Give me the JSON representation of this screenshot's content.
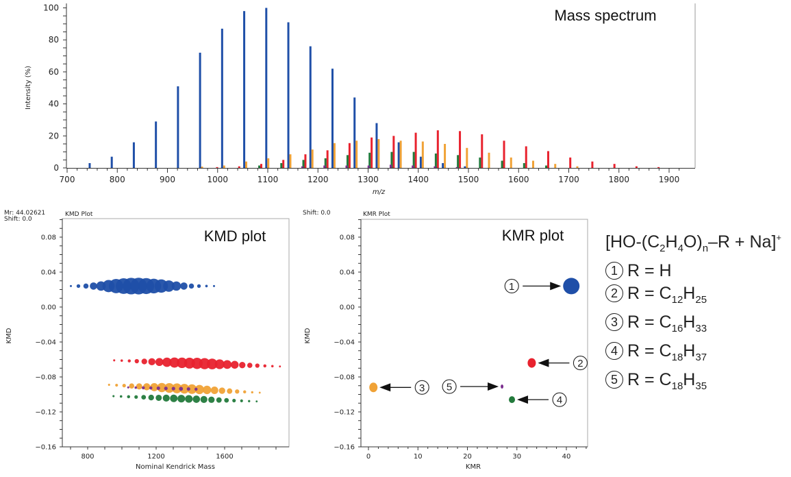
{
  "chart_data": [
    {
      "type": "bar",
      "title": "Mass spectrum",
      "xlabel": "m/z",
      "ylabel": "Intensity (%)",
      "xlim": [
        700,
        1920
      ],
      "ylim": [
        0,
        100
      ],
      "xticks": [
        700,
        800,
        900,
        1000,
        1100,
        1200,
        1300,
        1400,
        1500,
        1600,
        1700,
        1800,
        1900
      ],
      "yticks": [
        0,
        20,
        40,
        60,
        80,
        100
      ],
      "grid": false,
      "series": [
        {
          "name": "R = H",
          "color": "#1f4fa8",
          "x": [
            745,
            789,
            833,
            877,
            921,
            965,
            1009,
            1053,
            1097,
            1141,
            1185,
            1229,
            1273,
            1317,
            1361,
            1405,
            1449,
            1493
          ],
          "values": [
            3,
            7,
            16,
            29,
            51,
            72,
            87,
            98,
            100,
            91,
            76,
            62,
            44,
            28,
            16,
            7,
            3,
            1
          ]
        },
        {
          "name": "R = C12H25",
          "color": "#e8222e",
          "x": [
            999,
            1043,
            1087,
            1131,
            1175,
            1219,
            1263,
            1307,
            1351,
            1395,
            1439,
            1483,
            1527,
            1571,
            1615,
            1659,
            1703,
            1747,
            1791,
            1835,
            1879
          ],
          "values": [
            0.5,
            1,
            2.5,
            5,
            8.5,
            11,
            15.5,
            19,
            20,
            22,
            23.5,
            23,
            21,
            17,
            13.5,
            10.5,
            6.5,
            4,
            2.5,
            1,
            0.5
          ]
        },
        {
          "name": "R = C16H33",
          "color": "#f0a236",
          "x": [
            969,
            1013,
            1057,
            1101,
            1145,
            1189,
            1233,
            1277,
            1321,
            1365,
            1409,
            1453,
            1497,
            1541,
            1585,
            1629,
            1673,
            1717
          ],
          "values": [
            0.8,
            1.5,
            4,
            6,
            8.5,
            11.5,
            15.5,
            17,
            18,
            17,
            16.5,
            15,
            12.5,
            9.5,
            6.5,
            4.5,
            2.5,
            1
          ]
        },
        {
          "name": "R = C18H37",
          "color": "#237a3c",
          "x": [
            1083,
            1127,
            1171,
            1215,
            1259,
            1303,
            1347,
            1391,
            1435,
            1479,
            1523,
            1567,
            1611,
            1655
          ],
          "values": [
            1.5,
            3,
            5,
            6,
            8,
            9.5,
            10,
            10,
            9,
            8,
            6.5,
            4.5,
            3,
            1.5
          ]
        },
        {
          "name": "R = C18H35",
          "color": "#7b2f8f",
          "x": [
            1169,
            1213,
            1257,
            1301,
            1345,
            1389,
            1433,
            1477
          ],
          "values": [
            1,
            1.5,
            1.5,
            1.5,
            2,
            1.5,
            1,
            0.5
          ]
        }
      ]
    },
    {
      "type": "scatter",
      "title": "KMD plot",
      "panel_label": "KMD Plot",
      "header_lines": [
        "Mr: 44.02621",
        "Shift: 0.0"
      ],
      "xlabel": "Nominal Kendrick Mass",
      "ylabel": "KMD",
      "xlim": [
        652,
        1976
      ],
      "ylim": [
        -0.16,
        0.102
      ],
      "xticks": [
        800,
        1200,
        1600
      ],
      "yticks": [
        0.08,
        0.04,
        0.0,
        -0.04,
        -0.08,
        -0.12,
        -0.16
      ],
      "ytick_labels": [
        "0.08",
        "0.04",
        "0.00",
        "−0.04",
        "−0.08",
        "−0.12",
        "−0.16"
      ],
      "series": [
        {
          "name": "R = H",
          "color": "#1f4fa8",
          "kmd_start": 0.024,
          "kmd_end": 0.024,
          "x": [
            702,
            746,
            790,
            834,
            878,
            922,
            966,
            1010,
            1054,
            1098,
            1142,
            1186,
            1230,
            1274,
            1318,
            1362,
            1406,
            1450,
            1494,
            1538
          ],
          "intensity": [
            0.5,
            3,
            7,
            16,
            29,
            51,
            72,
            87,
            98,
            100,
            91,
            76,
            62,
            44,
            28,
            16,
            7,
            3,
            1,
            0.5
          ]
        },
        {
          "name": "R = C12H25",
          "color": "#e8222e",
          "kmd_start": -0.061,
          "kmd_end": -0.068,
          "x": [
            955,
            999,
            1043,
            1087,
            1131,
            1175,
            1219,
            1263,
            1307,
            1351,
            1395,
            1439,
            1483,
            1527,
            1571,
            1615,
            1659,
            1703,
            1747,
            1791,
            1835,
            1879,
            1923
          ],
          "intensity": [
            0.3,
            0.5,
            1,
            2.5,
            5,
            8.5,
            11,
            15.5,
            19,
            20,
            22,
            23.5,
            23,
            21,
            17,
            13.5,
            10.5,
            6.5,
            4,
            2.5,
            1,
            0.5,
            0.2
          ]
        },
        {
          "name": "R = C16H33",
          "color": "#f0a236",
          "kmd_start": -0.089,
          "kmd_end": -0.098,
          "x": [
            925,
            969,
            1013,
            1057,
            1101,
            1145,
            1189,
            1233,
            1277,
            1321,
            1365,
            1409,
            1453,
            1497,
            1541,
            1585,
            1629,
            1673,
            1717,
            1761,
            1805
          ],
          "intensity": [
            0.3,
            0.8,
            1.5,
            4,
            6,
            8.5,
            11.5,
            15.5,
            17,
            18,
            17,
            16.5,
            15,
            12.5,
            9.5,
            6.5,
            4.5,
            2.5,
            1,
            0.4,
            0.2
          ]
        },
        {
          "name": "R = C18H37",
          "color": "#237a3c",
          "kmd_start": -0.102,
          "kmd_end": -0.108,
          "x": [
            951,
            995,
            1039,
            1083,
            1127,
            1171,
            1215,
            1259,
            1303,
            1347,
            1391,
            1435,
            1479,
            1523,
            1567,
            1611,
            1655,
            1699,
            1743,
            1787
          ],
          "intensity": [
            0.3,
            0.5,
            1,
            1.5,
            3,
            5,
            6,
            8,
            9.5,
            10,
            10,
            9,
            8,
            6.5,
            4.5,
            3,
            1.5,
            0.8,
            0.4,
            0.2
          ]
        },
        {
          "name": "R = C18H35",
          "color": "#7b2f8f",
          "kmd_start": -0.092,
          "kmd_end": -0.094,
          "x": [
            1037,
            1081,
            1125,
            1169,
            1213,
            1257,
            1301,
            1345,
            1389,
            1433
          ],
          "intensity": [
            0.3,
            0.5,
            1,
            1,
            1.5,
            1.5,
            1.5,
            2,
            1.5,
            1
          ]
        }
      ]
    },
    {
      "type": "scatter",
      "title": "KMR plot",
      "panel_label": "KMR Plot",
      "header_lines": [
        "Shift: 0.0"
      ],
      "xlabel": "KMR",
      "ylabel": "KMD",
      "xlim": [
        -1.5,
        44.3
      ],
      "ylim": [
        -0.16,
        0.102
      ],
      "xticks": [
        0,
        10,
        20,
        30,
        40
      ],
      "yticks": [
        0.08,
        0.04,
        0.0,
        -0.04,
        -0.08,
        -0.12,
        -0.16
      ],
      "ytick_labels": [
        "0.08",
        "0.04",
        "0.00",
        "−0.04",
        "−0.08",
        "−0.12",
        "−0.16"
      ],
      "points": [
        {
          "label": "1",
          "name": "R = H",
          "color": "#1f4fa8",
          "kmr": 41,
          "kmd": 0.024,
          "size": "large",
          "arrow_from": "left"
        },
        {
          "label": "2",
          "name": "R = C12H25",
          "color": "#e8222e",
          "kmr": 33,
          "kmd": -0.064,
          "size": "medium",
          "arrow_from": "right"
        },
        {
          "label": "3",
          "name": "R = C16H33",
          "color": "#f0a236",
          "kmr": 1,
          "kmd": -0.092,
          "size": "medium",
          "arrow_from": "right"
        },
        {
          "label": "4",
          "name": "R = C18H37",
          "color": "#237a3c",
          "kmr": 29,
          "kmd": -0.106,
          "size": "small",
          "arrow_from": "right"
        },
        {
          "label": "5",
          "name": "R = C18H35",
          "color": "#7b2f8f",
          "kmr": 27,
          "kmd": -0.091,
          "size": "tiny",
          "arrow_from": "left"
        }
      ]
    }
  ],
  "legend": {
    "formula_parts": [
      "[HO-(C",
      "2",
      "H",
      "4",
      "O)",
      "n",
      "–R + Na]",
      "+"
    ],
    "items": [
      {
        "num": "1",
        "lhs": "R = ",
        "c": "H",
        "c_sub": "",
        "h": "",
        "h_sub": ""
      },
      {
        "num": "2",
        "lhs": "R = ",
        "c": "C",
        "c_sub": "12",
        "h": "H",
        "h_sub": "25"
      },
      {
        "num": "3",
        "lhs": "R = ",
        "c": "C",
        "c_sub": "16",
        "h": "H",
        "h_sub": "33"
      },
      {
        "num": "4",
        "lhs": "R = ",
        "c": "C",
        "c_sub": "18",
        "h": "H",
        "h_sub": "37"
      },
      {
        "num": "5",
        "lhs": "R = ",
        "c": "C",
        "c_sub": "18",
        "h": "H",
        "h_sub": "35"
      }
    ]
  }
}
